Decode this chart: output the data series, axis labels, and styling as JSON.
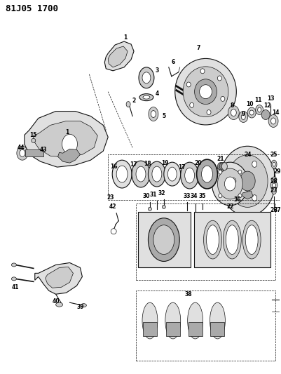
{
  "title": "81J05 1700",
  "bg_color": "#ffffff",
  "title_fontsize": 9,
  "title_weight": "bold",
  "fig_width": 4.01,
  "fig_height": 5.33,
  "dpi": 100,
  "text_color": "#000000",
  "label_fontsize": 5.5
}
